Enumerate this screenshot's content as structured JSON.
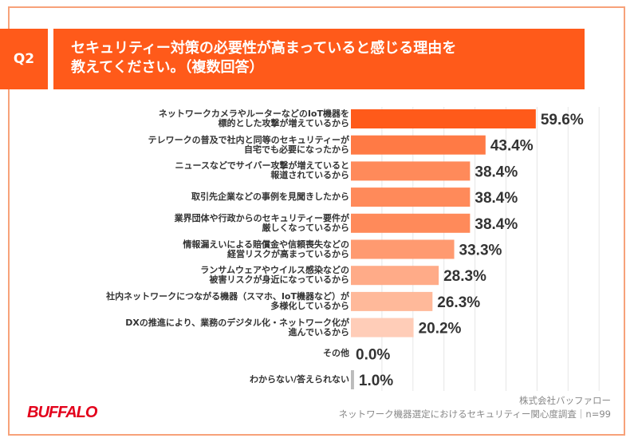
{
  "header": {
    "badge": "Q2",
    "title_line1": "セキュリティー対策の必要性が高まっていると感じる理由を",
    "title_line2": "教えてください。（複数回答）"
  },
  "chart_data": {
    "type": "bar",
    "orientation": "horizontal",
    "xlim": [
      0,
      100
    ],
    "grid": true,
    "categories": [
      [
        "ネットワークカメラやルーターなどのIoT機器を",
        "標的とした攻撃が増えているから"
      ],
      [
        "テレワークの普及で社内と同等のセキュリティーが",
        "自宅でも必要になったから"
      ],
      [
        "ニュースなどでサイバー攻撃が増えていると",
        "報道されているから"
      ],
      [
        "取引先企業などの事例を見聞きしたから"
      ],
      [
        "業界団体や行政からのセキュリティー要件が",
        "厳しくなっているから"
      ],
      [
        "情報漏えいによる賠償金や信頼喪失などの",
        "経営リスクが高まっているから"
      ],
      [
        "ランサムウェアやウイルス感染などの",
        "被害リスクが身近になっているから"
      ],
      [
        "社内ネットワークにつながる機器（スマホ、IoT機器など）が",
        "多様化しているから"
      ],
      [
        "DXの推進により、業務のデジタル化・ネットワーク化が",
        "進んでいるから"
      ],
      [
        "その他"
      ],
      [
        "わからない/答えられない"
      ]
    ],
    "values": [
      59.6,
      43.4,
      38.4,
      38.4,
      38.4,
      33.3,
      28.3,
      26.3,
      20.2,
      0.0,
      1.0
    ],
    "value_labels": [
      "59.6%",
      "43.4%",
      "38.4%",
      "38.4%",
      "38.4%",
      "33.3%",
      "28.3%",
      "26.3%",
      "20.2%",
      "0.0%",
      "1.0%"
    ],
    "colors": [
      "#ff5a1a",
      "#ff7a45",
      "#ff8a5a",
      "#ff8a5a",
      "#ff8a5a",
      "#ff9a70",
      "#ffab88",
      "#ffb99a",
      "#ffcdb8",
      "#bbbbbb",
      "#bbbbbb"
    ]
  },
  "footer": {
    "company": "株式会社バッファロー",
    "survey": "ネットワーク機器選定におけるセキュリティー関心度調査｜n=99",
    "logo": "BUFFALO"
  }
}
